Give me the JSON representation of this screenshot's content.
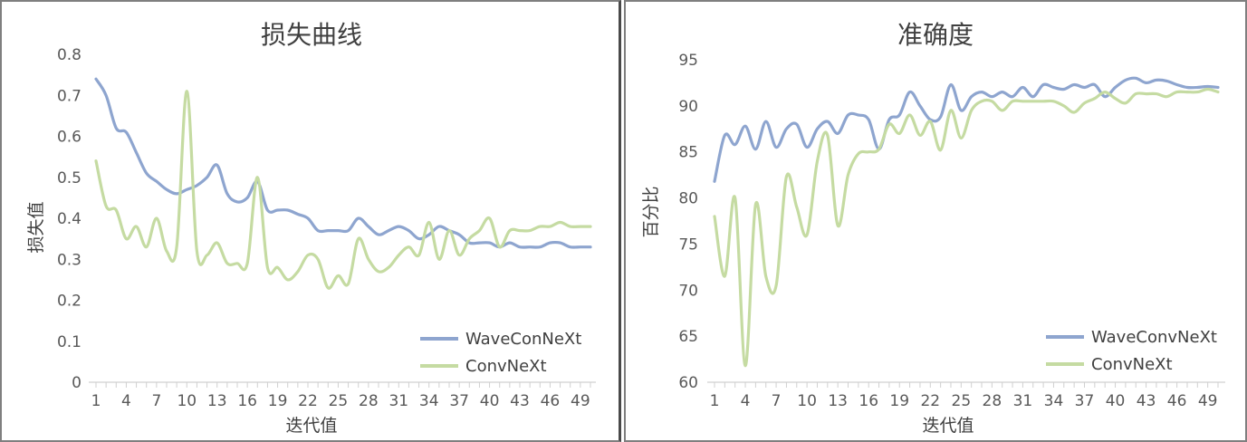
{
  "chart_data": [
    {
      "type": "line",
      "title": "损失曲线",
      "xlabel": "迭代值",
      "ylabel": "损失值",
      "ylim": [
        0,
        0.8
      ],
      "yticks": [
        "0",
        "0.1",
        "0.2",
        "0.3",
        "0.4",
        "0.5",
        "0.6",
        "0.7",
        "0.8"
      ],
      "xticks": [
        "1",
        "4",
        "7",
        "10",
        "13",
        "16",
        "19",
        "22",
        "25",
        "28",
        "31",
        "34",
        "37",
        "40",
        "43",
        "46",
        "49"
      ],
      "x": [
        1,
        2,
        3,
        4,
        5,
        6,
        7,
        8,
        9,
        10,
        11,
        12,
        13,
        14,
        15,
        16,
        17,
        18,
        19,
        20,
        21,
        22,
        23,
        24,
        25,
        26,
        27,
        28,
        29,
        30,
        31,
        32,
        33,
        34,
        35,
        36,
        37,
        38,
        39,
        40,
        41,
        42,
        43,
        44,
        45,
        46,
        47,
        48,
        49,
        50
      ],
      "legend_position": "bottom-right",
      "grid": false,
      "series": [
        {
          "name": "WaveConNeXt",
          "color": "#8ea5cf",
          "values": [
            0.74,
            0.7,
            0.62,
            0.61,
            0.56,
            0.51,
            0.49,
            0.47,
            0.46,
            0.47,
            0.48,
            0.5,
            0.53,
            0.46,
            0.44,
            0.45,
            0.49,
            0.42,
            0.42,
            0.42,
            0.41,
            0.4,
            0.37,
            0.37,
            0.37,
            0.37,
            0.4,
            0.38,
            0.36,
            0.37,
            0.38,
            0.37,
            0.35,
            0.36,
            0.38,
            0.37,
            0.36,
            0.34,
            0.34,
            0.34,
            0.33,
            0.34,
            0.33,
            0.33,
            0.33,
            0.34,
            0.34,
            0.33,
            0.33,
            0.33
          ]
        },
        {
          "name": "ConvNeXt",
          "color": "#c5dba2",
          "values": [
            0.54,
            0.43,
            0.42,
            0.35,
            0.38,
            0.33,
            0.4,
            0.32,
            0.33,
            0.71,
            0.32,
            0.31,
            0.34,
            0.29,
            0.29,
            0.29,
            0.5,
            0.28,
            0.28,
            0.25,
            0.27,
            0.31,
            0.3,
            0.23,
            0.26,
            0.24,
            0.35,
            0.3,
            0.27,
            0.28,
            0.31,
            0.33,
            0.31,
            0.39,
            0.3,
            0.37,
            0.31,
            0.35,
            0.37,
            0.4,
            0.33,
            0.37,
            0.37,
            0.37,
            0.38,
            0.38,
            0.39,
            0.38,
            0.38,
            0.38
          ]
        }
      ]
    },
    {
      "type": "line",
      "title": "准确度",
      "xlabel": "迭代值",
      "ylabel": "百分比",
      "ylim": [
        60,
        95
      ],
      "yticks": [
        "60",
        "65",
        "70",
        "75",
        "80",
        "85",
        "90",
        "95"
      ],
      "xticks": [
        "1",
        "4",
        "7",
        "10",
        "13",
        "16",
        "19",
        "22",
        "25",
        "28",
        "31",
        "34",
        "37",
        "40",
        "43",
        "46",
        "49"
      ],
      "x": [
        1,
        2,
        3,
        4,
        5,
        6,
        7,
        8,
        9,
        10,
        11,
        12,
        13,
        14,
        15,
        16,
        17,
        18,
        19,
        20,
        21,
        22,
        23,
        24,
        25,
        26,
        27,
        28,
        29,
        30,
        31,
        32,
        33,
        34,
        35,
        36,
        37,
        38,
        39,
        40,
        41,
        42,
        43,
        44,
        45,
        46,
        47,
        48,
        49,
        50
      ],
      "legend_position": "bottom-right",
      "grid": false,
      "series": [
        {
          "name": "WaveConvNeXt",
          "color": "#8ea5cf",
          "values": [
            81.8,
            86.8,
            85.8,
            87.8,
            85.3,
            88.3,
            85.5,
            87.5,
            88.0,
            85.5,
            87.5,
            88.3,
            87.0,
            89.0,
            89.0,
            88.5,
            85.3,
            88.5,
            89.0,
            91.5,
            90.0,
            88.5,
            88.8,
            92.3,
            89.5,
            91.0,
            91.5,
            91.0,
            91.5,
            91.0,
            92.0,
            91.0,
            92.3,
            92.0,
            91.8,
            92.3,
            92.0,
            92.3,
            91.0,
            92.0,
            92.8,
            93.0,
            92.5,
            92.8,
            92.7,
            92.3,
            92.0,
            92.0,
            92.1,
            92.0
          ]
        },
        {
          "name": "ConvNeXt",
          "color": "#c5dba2",
          "values": [
            78.0,
            71.5,
            80.0,
            61.8,
            79.3,
            71.5,
            70.5,
            82.3,
            79.0,
            76.0,
            84.0,
            86.8,
            77.0,
            82.5,
            84.8,
            85.0,
            85.3,
            88.0,
            87.0,
            89.0,
            86.8,
            88.3,
            85.2,
            89.5,
            86.5,
            89.5,
            90.5,
            90.5,
            89.5,
            90.5,
            90.5,
            90.5,
            90.5,
            90.5,
            90.0,
            89.3,
            90.3,
            90.8,
            91.5,
            90.8,
            90.3,
            91.3,
            91.3,
            91.3,
            91.0,
            91.5,
            91.5,
            91.5,
            91.8,
            91.5
          ]
        }
      ]
    }
  ]
}
